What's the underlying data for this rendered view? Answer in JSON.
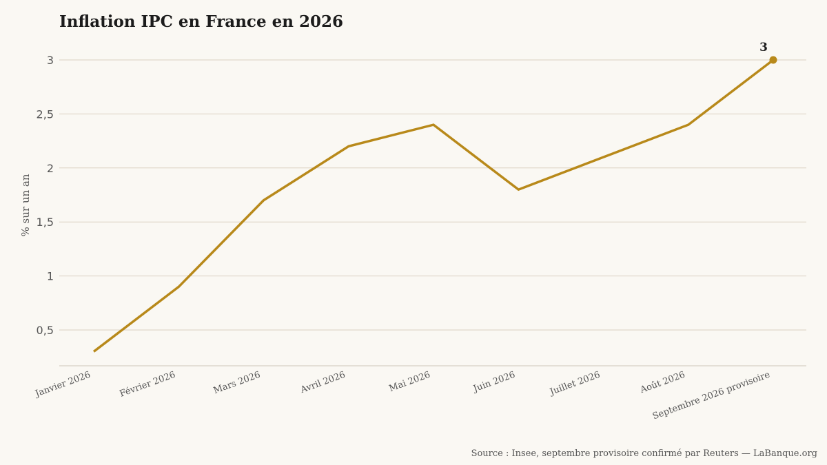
{
  "chart_data": {
    "type": "line",
    "title": "Inflation IPC en France en 2026",
    "xlabel": "",
    "ylabel": "% sur un an",
    "categories": [
      "Janvier 2026",
      "Février 2026",
      "Mars 2026",
      "Avril 2026",
      "Mai 2026",
      "Juin 2026",
      "Juillet 2026",
      "Août 2026",
      "Septembre 2026 provisoire"
    ],
    "series": [
      {
        "values": [
          0.3,
          0.9,
          1.7,
          2.2,
          2.4,
          1.8,
          2.1,
          2.4,
          3.0
        ]
      }
    ],
    "yticks": [
      0.5,
      1,
      1.5,
      2,
      2.5,
      3
    ],
    "ytick_labels": [
      "0,5",
      "1",
      "1,5",
      "2",
      "2,5",
      "3"
    ],
    "ylim": [
      0.15,
      3.3
    ],
    "grid": true,
    "line_color": "#b8891a",
    "grid_color": "#d9cfc1",
    "annotations": [
      {
        "category": "Septembre 2026 provisoire",
        "value": 3.0,
        "label": "3"
      }
    ]
  },
  "source": "Source : Insee, septembre provisoire confirmé par Reuters — LaBanque.org"
}
